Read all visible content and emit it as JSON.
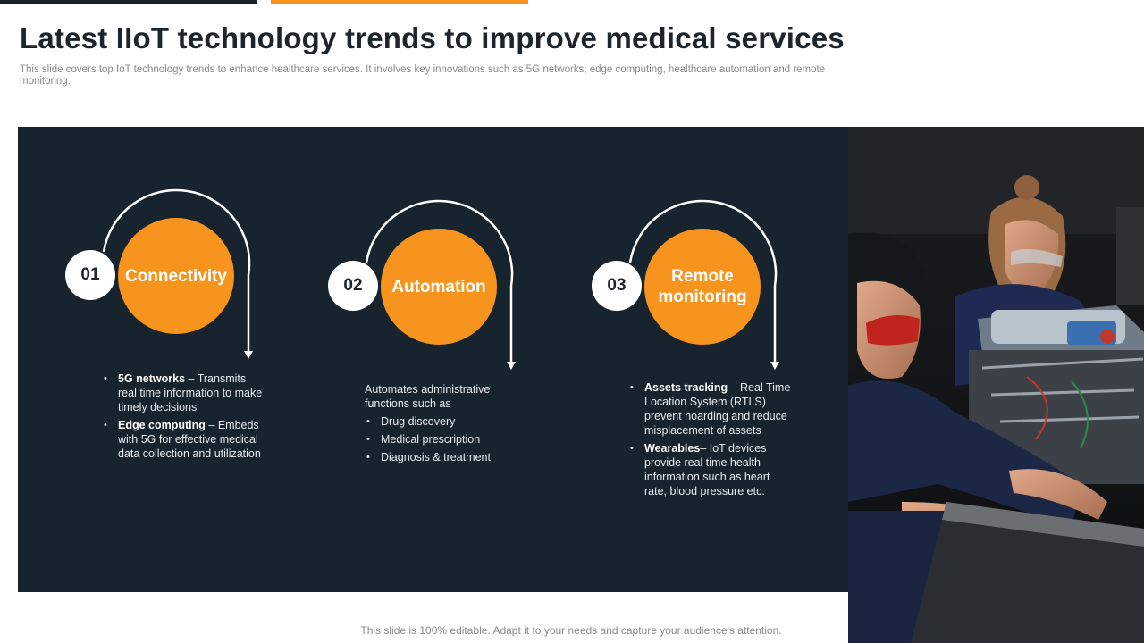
{
  "slide": {
    "title": "Latest IIoT technology trends to improve medical services",
    "subtitle": "This slide covers top IoT technology trends to enhance healthcare services. It involves key innovations such as 5G networks, edge computing, healthcare automation and remote monitoring.",
    "footer": "This slide is 100% editable. Adapt it to your needs and capture your audience's attention."
  },
  "colors": {
    "accent": "#f7941d",
    "panel": "#17232d",
    "text_light": "#e8ecef"
  },
  "trends": [
    {
      "number": "01",
      "title": "Connectivity",
      "bullets": [
        {
          "bold": "5G networks",
          "text": " – Transmits real time information to make timely decisions"
        },
        {
          "bold": "Edge computing",
          "text": " – Embeds with 5G for effective medical data collection and utilization"
        }
      ]
    },
    {
      "number": "02",
      "title": "Automation",
      "intro": "Automates administrative functions such as",
      "bullets": [
        {
          "text": "Drug discovery"
        },
        {
          "text": "Medical prescription"
        },
        {
          "text": "Diagnosis & treatment"
        }
      ]
    },
    {
      "number": "03",
      "title": "Remote monitoring",
      "bullets": [
        {
          "bold": "Assets tracking",
          "text": " – Real Time Location System (RTLS) prevent hoarding and reduce misplacement of assets"
        },
        {
          "bold": "Wearables",
          "text": "– IoT devices provide real time health information such as heart rate, blood pressure etc."
        }
      ]
    }
  ],
  "image": {
    "icon": "students-working-on-electronics-photo"
  }
}
